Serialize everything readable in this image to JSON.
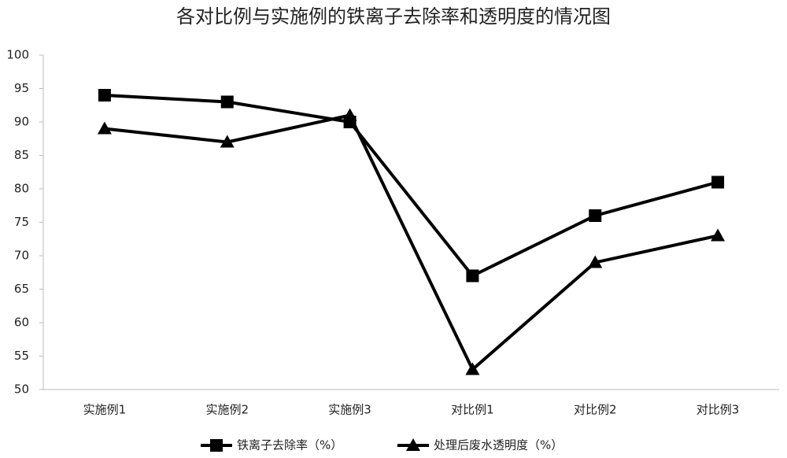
{
  "chart_data": {
    "type": "line",
    "title": "各对比例与实施例的铁离子去除率和透明度的情况图",
    "categories": [
      "实施例1",
      "实施例2",
      "实施例3",
      "对比例1",
      "对比例2",
      "对比例3"
    ],
    "series": [
      {
        "name": "铁离子去除率（%）",
        "color": "#000000",
        "marker": "square",
        "values": [
          94,
          93,
          90,
          67,
          76,
          81
        ]
      },
      {
        "name": "处理后废水透明度（%）",
        "color": "#000000",
        "marker": "triangle",
        "values": [
          89,
          87,
          91,
          53,
          69,
          73
        ]
      }
    ],
    "ylim": [
      50,
      100
    ],
    "yticks": [
      50,
      55,
      60,
      65,
      70,
      75,
      80,
      85,
      90,
      95,
      100
    ],
    "grid": false,
    "legend": "bottom"
  }
}
